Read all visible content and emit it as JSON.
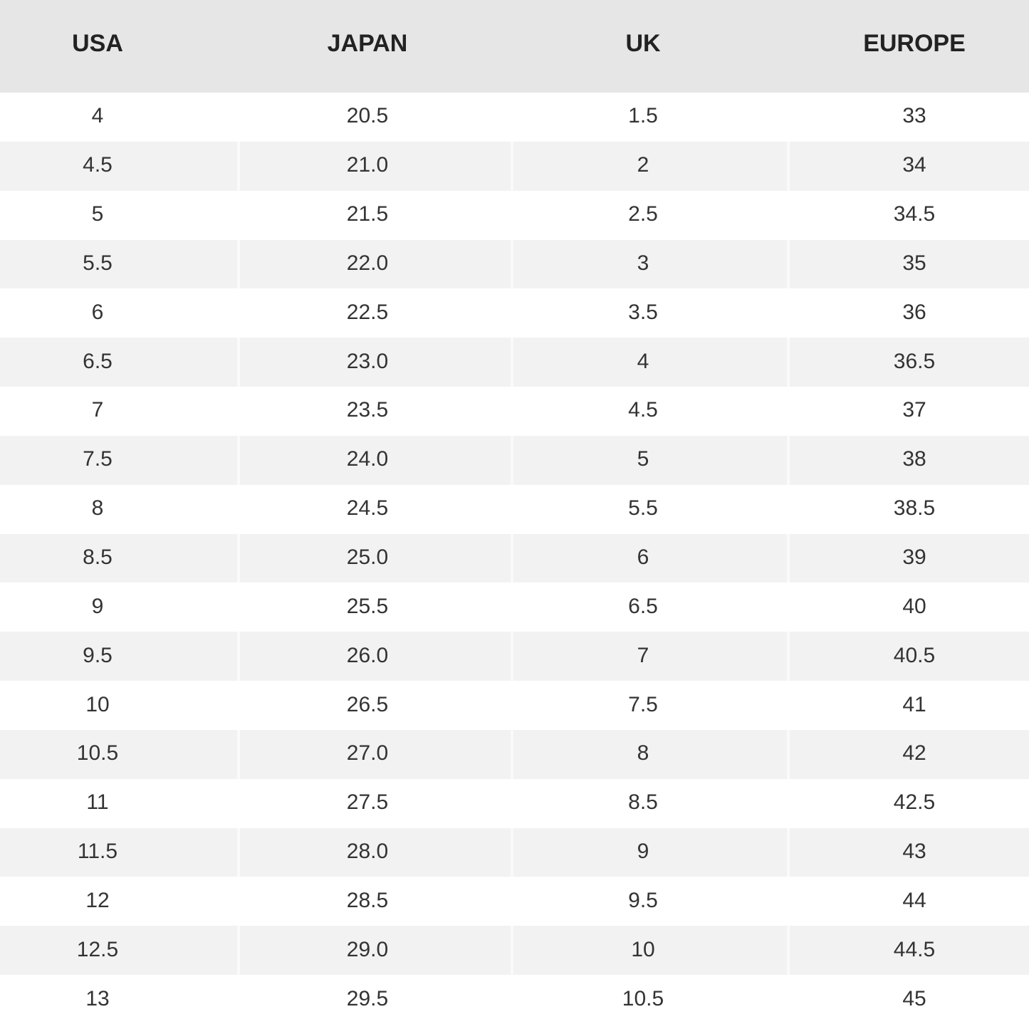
{
  "table": {
    "header": [
      "USA",
      "JAPAN",
      "UK",
      "EUROPE"
    ],
    "rows": [
      [
        "4",
        "20.5",
        "1.5",
        "33"
      ],
      [
        "4.5",
        "21.0",
        "2",
        "34"
      ],
      [
        "5",
        "21.5",
        "2.5",
        "34.5"
      ],
      [
        "5.5",
        "22.0",
        "3",
        "35"
      ],
      [
        "6",
        "22.5",
        "3.5",
        "36"
      ],
      [
        "6.5",
        "23.0",
        "4",
        "36.5"
      ],
      [
        "7",
        "23.5",
        "4.5",
        "37"
      ],
      [
        "7.5",
        "24.0",
        "5",
        "38"
      ],
      [
        "8",
        "24.5",
        "5.5",
        "38.5"
      ],
      [
        "8.5",
        "25.0",
        "6",
        "39"
      ],
      [
        "9",
        "25.5",
        "6.5",
        "40"
      ],
      [
        "9.5",
        "26.0",
        "7",
        "40.5"
      ],
      [
        "10",
        "26.5",
        "7.5",
        "41"
      ],
      [
        "10.5",
        "27.0",
        "8",
        "42"
      ],
      [
        "11",
        "27.5",
        "8.5",
        "42.5"
      ],
      [
        "11.5",
        "28.0",
        "9",
        "43"
      ],
      [
        "12",
        "28.5",
        "9.5",
        "44"
      ],
      [
        "12.5",
        "29.0",
        "10",
        "44.5"
      ],
      [
        "13",
        "29.5",
        "10.5",
        "45"
      ]
    ]
  }
}
